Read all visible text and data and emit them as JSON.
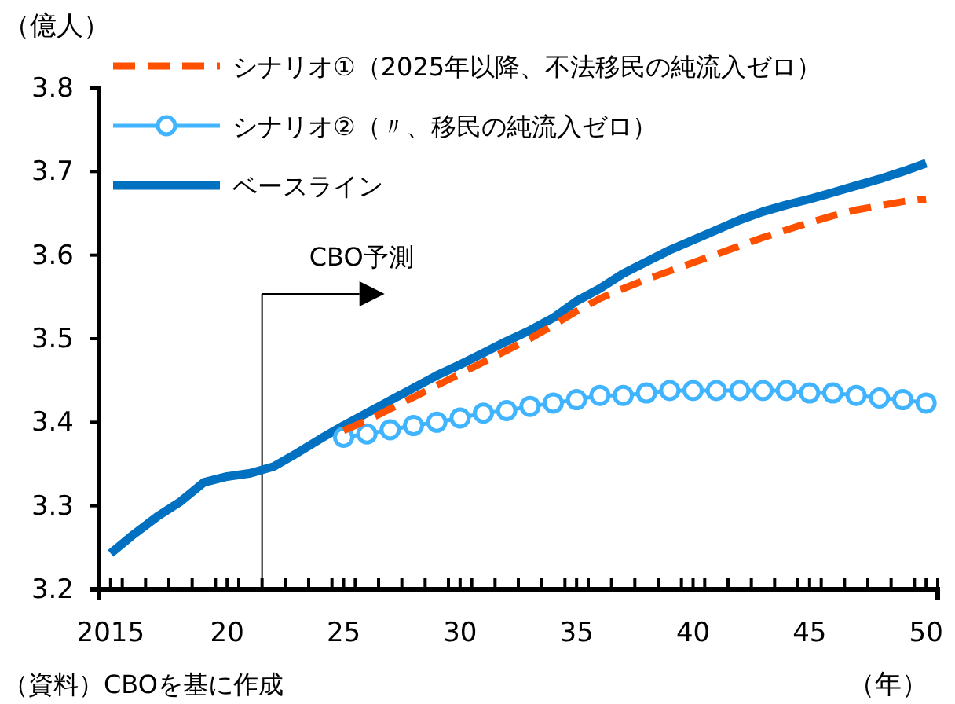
{
  "chart_data": {
    "type": "line",
    "ylabel": "（億人）",
    "xlabel": "（年）",
    "x": [
      2015,
      2016,
      2017,
      2018,
      2019,
      2020,
      2021,
      2022,
      2023,
      2024,
      2025,
      2026,
      2027,
      2028,
      2029,
      2030,
      2031,
      2032,
      2033,
      2034,
      2035,
      2036,
      2037,
      2038,
      2039,
      2040,
      2041,
      2042,
      2043,
      2044,
      2045,
      2046,
      2047,
      2048,
      2049,
      2050
    ],
    "series": [
      {
        "name": "シナリオ①（2025年以降、不法移民の純流入ゼロ）",
        "color": "#ff5000",
        "line_style": "dashed",
        "marker": "none",
        "values": [
          null,
          null,
          null,
          null,
          null,
          null,
          null,
          null,
          null,
          null,
          3.39,
          3.402,
          3.416,
          3.43,
          3.444,
          3.458,
          3.472,
          3.486,
          3.5,
          3.516,
          3.533,
          3.548,
          3.56,
          3.571,
          3.581,
          3.591,
          3.601,
          3.611,
          3.621,
          3.63,
          3.639,
          3.647,
          3.654,
          3.659,
          3.664,
          3.667
        ]
      },
      {
        "name": "シナリオ②（〃、移民の純流入ゼロ）",
        "color": "#41b4ff",
        "line_style": "solid",
        "marker": "circle",
        "values": [
          null,
          null,
          null,
          null,
          null,
          null,
          null,
          null,
          null,
          null,
          3.382,
          3.386,
          3.391,
          3.396,
          3.4,
          3.405,
          3.411,
          3.414,
          3.419,
          3.423,
          3.427,
          3.432,
          3.432,
          3.435,
          3.438,
          3.438,
          3.438,
          3.438,
          3.438,
          3.438,
          3.435,
          3.435,
          3.432,
          3.429,
          3.427,
          3.423
        ]
      },
      {
        "name": "ベースライン",
        "color": "#0070c0",
        "line_style": "solid",
        "marker": "none",
        "values": [
          3.243,
          3.266,
          3.287,
          3.305,
          3.328,
          3.335,
          3.339,
          3.347,
          3.363,
          3.38,
          3.396,
          3.411,
          3.426,
          3.441,
          3.456,
          3.469,
          3.483,
          3.497,
          3.51,
          3.525,
          3.545,
          3.56,
          3.578,
          3.592,
          3.606,
          3.618,
          3.63,
          3.642,
          3.652,
          3.66,
          3.667,
          3.675,
          3.683,
          3.691,
          3.7,
          3.71
        ]
      }
    ],
    "xlim": [
      2014.5,
      2050.5
    ],
    "xticks": [
      {
        "value": 2015,
        "label": "2015"
      },
      {
        "value": 2020,
        "label": "20"
      },
      {
        "value": 2025,
        "label": "25"
      },
      {
        "value": 2030,
        "label": "30"
      },
      {
        "value": 2035,
        "label": "35"
      },
      {
        "value": 2040,
        "label": "40"
      },
      {
        "value": 2045,
        "label": "45"
      },
      {
        "value": 2050,
        "label": "50"
      }
    ],
    "ylim": [
      3.2,
      3.8
    ],
    "yticks": [
      3.2,
      3.3,
      3.4,
      3.5,
      3.6,
      3.7,
      3.8
    ],
    "ref_lines": [
      {
        "axis": "x",
        "value": 2021.5,
        "label": "CBO予測"
      }
    ],
    "annotations": [
      "（資料）CBOを基に作成"
    ],
    "legend": "top left",
    "grid": false
  }
}
